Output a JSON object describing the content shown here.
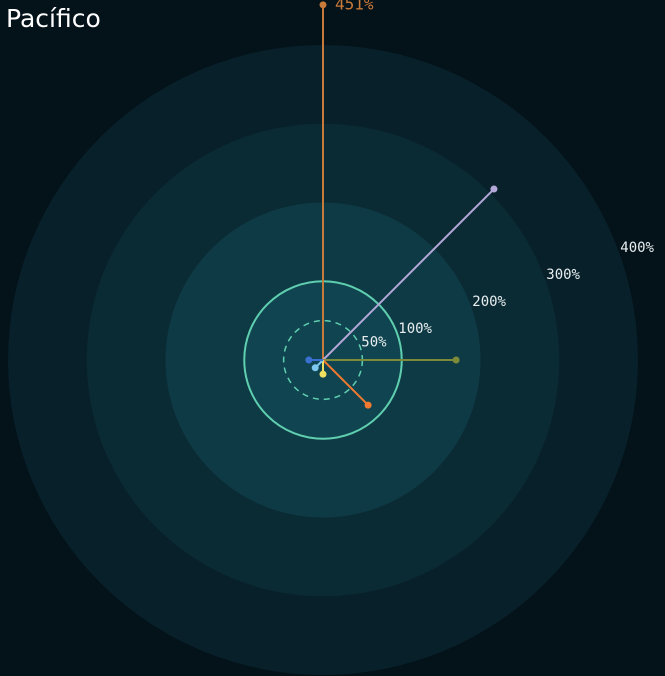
{
  "chart_data": {
    "type": "radial-spokes",
    "title": "Pacífico",
    "values": [
      451,
      307,
      169,
      81,
      18,
      14,
      18
    ],
    "value_labels": [
      "451%",
      null,
      null,
      null,
      null,
      null,
      null
    ],
    "colors": [
      "#c87a3a",
      "#b3a8d8",
      "#7c8a3a",
      "#f07a30",
      "#f0e060",
      "#7cc8f0",
      "#3a70d0"
    ],
    "rlim": [
      0,
      400
    ],
    "rticks": [
      {
        "value": 50,
        "label": "50%"
      },
      {
        "value": 100,
        "label": "100%"
      },
      {
        "value": 200,
        "label": "200%"
      },
      {
        "value": 300,
        "label": "300%"
      },
      {
        "value": 400,
        "label": "400%"
      }
    ]
  }
}
